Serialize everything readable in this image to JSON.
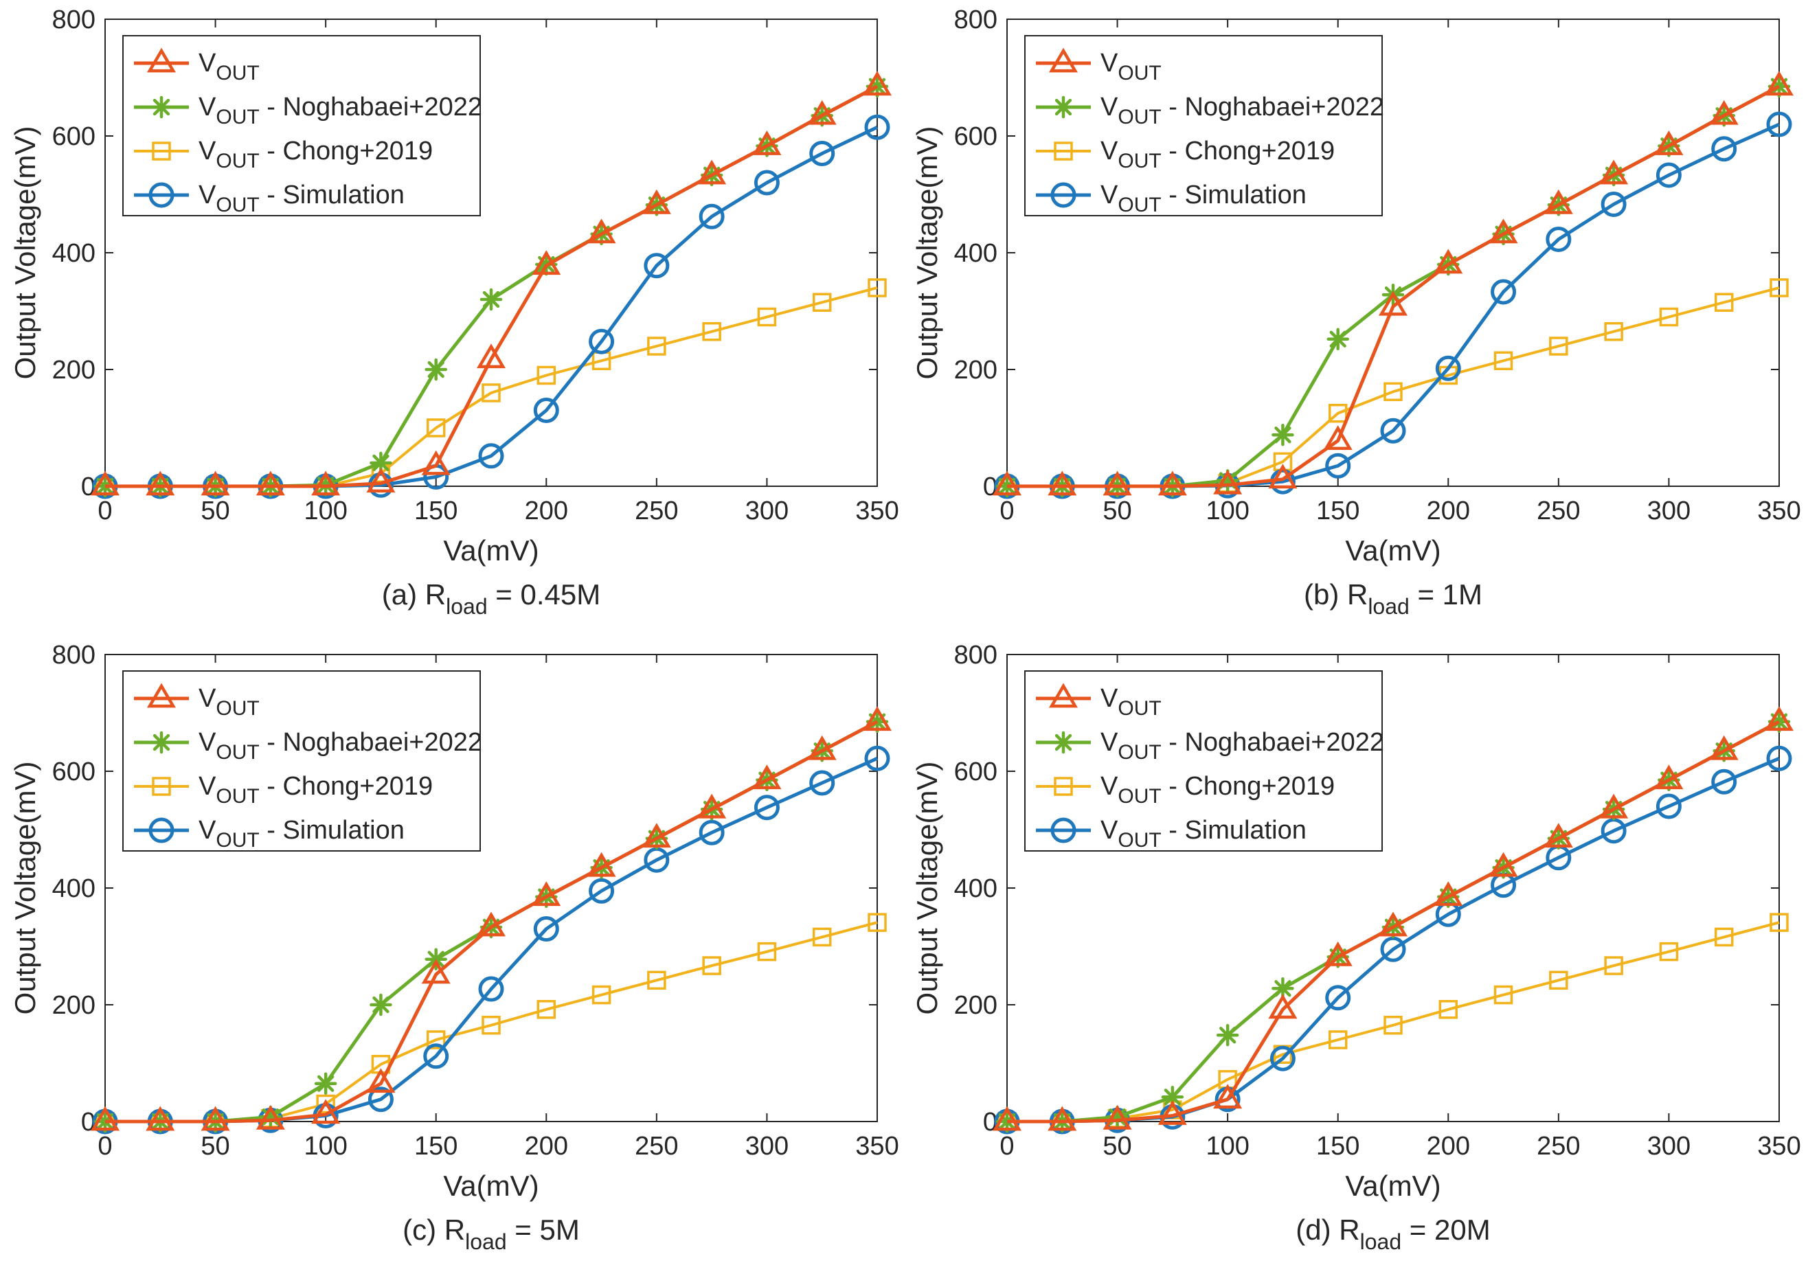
{
  "figure": {
    "series_names": [
      "V",
      "V - Noghabaei+2022",
      "V - Chong+2019",
      "V - Simulation"
    ],
    "colors": {
      "vout": "#E8541E",
      "noghabaei": "#6AAD2A",
      "chong": "#F2B21B",
      "simulation": "#1F77BC"
    }
  },
  "chart_data": [
    {
      "type": "line",
      "caption": {
        "prefix": "(a) R",
        "sub": "load",
        "suffix": " = 0.45M"
      },
      "xlabel": "Va(mV)",
      "ylabel": "Output Voltage(mV)",
      "xlim": [
        0,
        350
      ],
      "ylim": [
        0,
        800
      ],
      "xticks": [
        "0",
        "50",
        "100",
        "150",
        "200",
        "250",
        "300",
        "350"
      ],
      "yticks": [
        "0",
        "200",
        "400",
        "600",
        "800"
      ],
      "x": [
        0,
        25,
        50,
        75,
        100,
        125,
        150,
        175,
        200,
        225,
        250,
        275,
        300,
        325,
        350
      ],
      "legend": [
        {
          "main": "V",
          "sub": "OUT",
          "rest": ""
        },
        {
          "main": "V",
          "sub": "OUT",
          "rest": " - Noghabaei+2022"
        },
        {
          "main": "V",
          "sub": "OUT",
          "rest": " - Chong+2019"
        },
        {
          "main": "V",
          "sub": "OUT",
          "rest": " - Simulation"
        }
      ],
      "series": [
        {
          "name": "VOUT",
          "marker": "triangle",
          "color": "#E8541E",
          "values": [
            0,
            0,
            0,
            0,
            0,
            5,
            35,
            218,
            378,
            432,
            482,
            533,
            583,
            635,
            685
          ]
        },
        {
          "name": "VOUT - Noghabaei+2022",
          "marker": "star",
          "color": "#6AAD2A",
          "values": [
            0,
            0,
            0,
            0,
            2,
            40,
            200,
            320,
            380,
            432,
            482,
            533,
            583,
            635,
            685
          ]
        },
        {
          "name": "VOUT - Chong+2019",
          "marker": "square",
          "color": "#F2B21B",
          "values": [
            0,
            0,
            0,
            0,
            0,
            22,
            100,
            160,
            190,
            215,
            240,
            265,
            290,
            315,
            340
          ]
        },
        {
          "name": "VOUT - Simulation",
          "marker": "circle",
          "color": "#1F77BC",
          "values": [
            0,
            0,
            0,
            0,
            0,
            2,
            16,
            52,
            130,
            248,
            378,
            462,
            520,
            570,
            615
          ]
        }
      ]
    },
    {
      "type": "line",
      "caption": {
        "prefix": "(b) R",
        "sub": "load",
        "suffix": " = 1M"
      },
      "xlabel": "Va(mV)",
      "ylabel": "Output Voltage(mV)",
      "xlim": [
        0,
        350
      ],
      "ylim": [
        0,
        800
      ],
      "xticks": [
        "0",
        "50",
        "100",
        "150",
        "200",
        "250",
        "300",
        "350"
      ],
      "yticks": [
        "0",
        "200",
        "400",
        "600",
        "800"
      ],
      "x": [
        0,
        25,
        50,
        75,
        100,
        125,
        150,
        175,
        200,
        225,
        250,
        275,
        300,
        325,
        350
      ],
      "legend": [
        {
          "main": "V",
          "sub": "OUT",
          "rest": ""
        },
        {
          "main": "V",
          "sub": "OUT",
          "rest": " - Noghabaei+2022"
        },
        {
          "main": "V",
          "sub": "OUT",
          "rest": " - Chong+2019"
        },
        {
          "main": "V",
          "sub": "OUT",
          "rest": " - Simulation"
        }
      ],
      "series": [
        {
          "name": "VOUT",
          "marker": "triangle",
          "color": "#E8541E",
          "values": [
            0,
            0,
            0,
            0,
            2,
            12,
            78,
            308,
            380,
            432,
            482,
            533,
            583,
            635,
            685
          ]
        },
        {
          "name": "VOUT - Noghabaei+2022",
          "marker": "star",
          "color": "#6AAD2A",
          "values": [
            0,
            0,
            0,
            0,
            10,
            88,
            252,
            328,
            380,
            432,
            482,
            533,
            583,
            635,
            685
          ]
        },
        {
          "name": "VOUT - Chong+2019",
          "marker": "square",
          "color": "#F2B21B",
          "values": [
            0,
            0,
            0,
            0,
            5,
            42,
            125,
            162,
            190,
            215,
            240,
            265,
            290,
            315,
            340
          ]
        },
        {
          "name": "VOUT - Simulation",
          "marker": "circle",
          "color": "#1F77BC",
          "values": [
            0,
            0,
            0,
            0,
            1,
            8,
            35,
            95,
            202,
            333,
            423,
            483,
            533,
            578,
            620
          ]
        }
      ]
    },
    {
      "type": "line",
      "caption": {
        "prefix": "(c) R",
        "sub": "load",
        "suffix": " = 5M"
      },
      "xlabel": "Va(mV)",
      "ylabel": "Output Voltage(mV)",
      "xlim": [
        0,
        350
      ],
      "ylim": [
        0,
        800
      ],
      "xticks": [
        "0",
        "50",
        "100",
        "150",
        "200",
        "250",
        "300",
        "350"
      ],
      "yticks": [
        "0",
        "200",
        "400",
        "600",
        "800"
      ],
      "x": [
        0,
        25,
        50,
        75,
        100,
        125,
        150,
        175,
        200,
        225,
        250,
        275,
        300,
        325,
        350
      ],
      "legend": [
        {
          "main": "V",
          "sub": "OUT",
          "rest": ""
        },
        {
          "main": "V",
          "sub": "OUT",
          "rest": " - Noghabaei+2022"
        },
        {
          "main": "V",
          "sub": "OUT",
          "rest": " - Chong+2019"
        },
        {
          "main": "V",
          "sub": "OUT",
          "rest": " - Simulation"
        }
      ],
      "series": [
        {
          "name": "VOUT",
          "marker": "triangle",
          "color": "#E8541E",
          "values": [
            0,
            0,
            0,
            2,
            12,
            65,
            252,
            333,
            385,
            435,
            485,
            535,
            585,
            635,
            685
          ]
        },
        {
          "name": "VOUT - Noghabaei+2022",
          "marker": "star",
          "color": "#6AAD2A",
          "values": [
            0,
            0,
            0,
            8,
            65,
            200,
            278,
            333,
            385,
            435,
            485,
            535,
            585,
            635,
            685
          ]
        },
        {
          "name": "VOUT - Chong+2019",
          "marker": "square",
          "color": "#F2B21B",
          "values": [
            0,
            0,
            0,
            5,
            30,
            98,
            140,
            165,
            192,
            217,
            242,
            267,
            291,
            316,
            341
          ]
        },
        {
          "name": "VOUT - Simulation",
          "marker": "circle",
          "color": "#1F77BC",
          "values": [
            0,
            0,
            0,
            2,
            10,
            38,
            112,
            227,
            330,
            395,
            448,
            495,
            538,
            580,
            622
          ]
        }
      ]
    },
    {
      "type": "line",
      "caption": {
        "prefix": "(d) R",
        "sub": "load",
        "suffix": " = 20M"
      },
      "xlabel": "Va(mV)",
      "ylabel": "Output Voltage(mV)",
      "xlim": [
        0,
        350
      ],
      "ylim": [
        0,
        800
      ],
      "xticks": [
        "0",
        "50",
        "100",
        "150",
        "200",
        "250",
        "300",
        "350"
      ],
      "yticks": [
        "0",
        "200",
        "400",
        "600",
        "800"
      ],
      "x": [
        0,
        25,
        50,
        75,
        100,
        125,
        150,
        175,
        200,
        225,
        250,
        275,
        300,
        325,
        350
      ],
      "legend": [
        {
          "main": "V",
          "sub": "OUT",
          "rest": ""
        },
        {
          "main": "V",
          "sub": "OUT",
          "rest": " - Noghabaei+2022"
        },
        {
          "main": "V",
          "sub": "OUT",
          "rest": " - Chong+2019"
        },
        {
          "main": "V",
          "sub": "OUT",
          "rest": " - Simulation"
        }
      ],
      "series": [
        {
          "name": "VOUT",
          "marker": "triangle",
          "color": "#E8541E",
          "values": [
            0,
            0,
            2,
            10,
            38,
            192,
            282,
            333,
            385,
            435,
            485,
            535,
            585,
            635,
            685
          ]
        },
        {
          "name": "VOUT - Noghabaei+2022",
          "marker": "star",
          "color": "#6AAD2A",
          "values": [
            0,
            0,
            8,
            42,
            148,
            228,
            282,
            333,
            385,
            435,
            485,
            535,
            585,
            635,
            685
          ]
        },
        {
          "name": "VOUT - Chong+2019",
          "marker": "square",
          "color": "#F2B21B",
          "values": [
            0,
            0,
            5,
            20,
            72,
            115,
            140,
            165,
            192,
            217,
            242,
            267,
            291,
            316,
            341
          ]
        },
        {
          "name": "VOUT - Simulation",
          "marker": "circle",
          "color": "#1F77BC",
          "values": [
            0,
            0,
            2,
            8,
            38,
            108,
            212,
            295,
            355,
            405,
            452,
            498,
            540,
            582,
            622
          ]
        }
      ]
    }
  ]
}
